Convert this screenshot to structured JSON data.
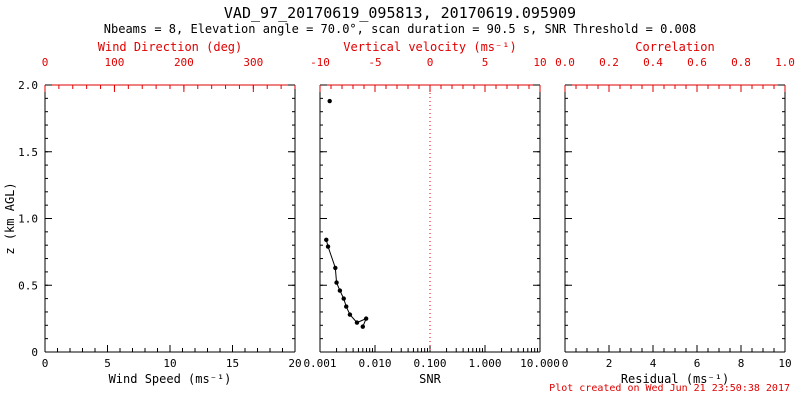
{
  "header": {
    "title": "VAD_97_20170619_095813, 20170619.095909",
    "subtitle": "Nbeams = 8, Elevation angle = 70.0°, scan duration = 90.5 s, SNR Threshold = 0.008"
  },
  "footer": {
    "created": "Plot created on Wed Jun 21 23:50:38 2017"
  },
  "colors": {
    "red": "#e00000",
    "black": "#000000",
    "background": "#ffffff"
  },
  "chart_data": [
    {
      "type": "scatter",
      "panel": "wind-speed",
      "bottom_axis": {
        "label": "Wind Speed (ms⁻¹)",
        "min": 0,
        "max": 20,
        "ticks": [
          0,
          5,
          10,
          15,
          20
        ],
        "tick_labels": [
          "0",
          "5",
          "10",
          "15",
          "20"
        ],
        "minor_step": 1
      },
      "top_axis": {
        "label": "Wind Direction (deg)",
        "min": 0,
        "max": 360,
        "ticks": [
          0,
          100,
          200,
          300
        ],
        "tick_labels": [
          "0",
          "100",
          "200",
          "300"
        ],
        "minor_step": 20
      },
      "y_axis": {
        "label": "z (km AGL)",
        "min": 0,
        "max": 2,
        "ticks": [
          0,
          0.5,
          1,
          1.5,
          2
        ],
        "tick_labels": [
          "0",
          "0.5",
          "1.0",
          "1.5",
          "2.0"
        ],
        "minor_step": 0.1,
        "show_labels": true
      },
      "series": []
    },
    {
      "type": "scatter",
      "panel": "snr",
      "bottom_axis": {
        "label": "SNR",
        "scale": "log",
        "min": 0.001,
        "max": 10,
        "ticks": [
          0.001,
          0.01,
          0.1,
          1,
          10
        ],
        "tick_labels": [
          "0.001",
          "0.010",
          "0.100",
          "1.000",
          "10.000"
        ]
      },
      "top_axis": {
        "label": "Vertical velocity (ms⁻¹)",
        "min": -10,
        "max": 10,
        "ticks": [
          -10,
          -5,
          0,
          5,
          10
        ],
        "tick_labels": [
          "-10",
          "-5",
          "0",
          "5",
          "10"
        ],
        "minor_step": 1
      },
      "y_axis": {
        "label": "z (km AGL)",
        "min": 0,
        "max": 2,
        "ticks": [
          0,
          0.5,
          1,
          1.5,
          2
        ],
        "tick_labels": [
          "0",
          "0.5",
          "1.0",
          "1.5",
          "2.0"
        ],
        "minor_step": 0.1,
        "show_labels": false
      },
      "ref_line": {
        "x": 0.1,
        "color": "red",
        "style": "dotted"
      },
      "series": [
        {
          "name": "snr-profile-upper",
          "marker": "circle",
          "connected": false,
          "points": [
            [
              0.0015,
              1.88
            ]
          ]
        },
        {
          "name": "snr-profile-lower",
          "marker": "circle",
          "connected": true,
          "points": [
            [
              0.0013,
              0.84
            ],
            [
              0.0014,
              0.79
            ],
            [
              0.0019,
              0.63
            ],
            [
              0.002,
              0.52
            ],
            [
              0.0023,
              0.46
            ],
            [
              0.0027,
              0.4
            ],
            [
              0.003,
              0.34
            ],
            [
              0.0035,
              0.28
            ],
            [
              0.0047,
              0.22
            ],
            [
              0.0069,
              0.25
            ],
            [
              0.006,
              0.19
            ]
          ]
        }
      ]
    },
    {
      "type": "scatter",
      "panel": "residual",
      "bottom_axis": {
        "label": "Residual (ms⁻¹)",
        "min": 0,
        "max": 10,
        "ticks": [
          0,
          2,
          4,
          6,
          8,
          10
        ],
        "tick_labels": [
          "0",
          "2",
          "4",
          "6",
          "8",
          "10"
        ],
        "minor_step": 0.5
      },
      "top_axis": {
        "label": "Correlation",
        "min": 0,
        "max": 1,
        "ticks": [
          0,
          0.2,
          0.4,
          0.6,
          0.8,
          1
        ],
        "tick_labels": [
          "0.0",
          "0.2",
          "0.4",
          "0.6",
          "0.8",
          "1.0"
        ],
        "minor_step": 0.05
      },
      "y_axis": {
        "label": "z (km AGL)",
        "min": 0,
        "max": 2,
        "ticks": [
          0,
          0.5,
          1,
          1.5,
          2
        ],
        "tick_labels": [
          "0",
          "0.5",
          "1.0",
          "1.5",
          "2.0"
        ],
        "minor_step": 0.1,
        "show_labels": false
      },
      "series": []
    }
  ]
}
